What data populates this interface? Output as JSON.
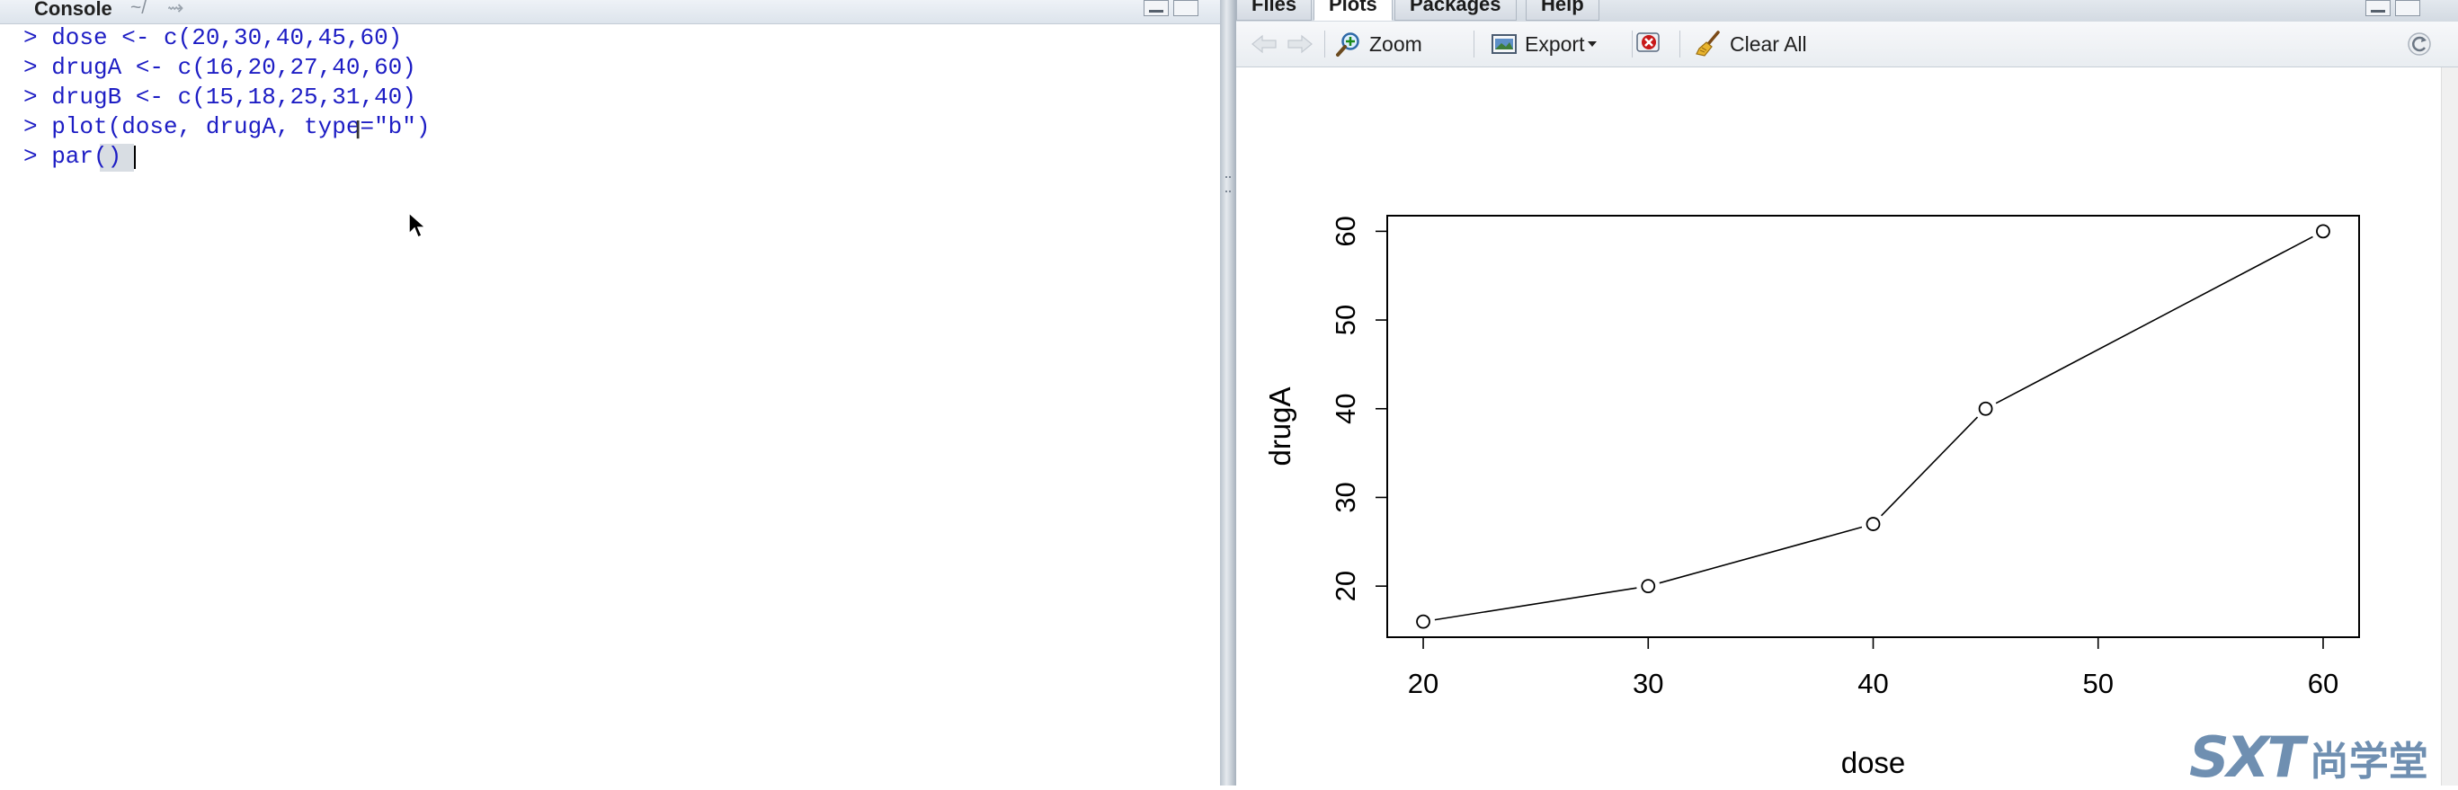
{
  "console": {
    "title": "Console",
    "path": "~/",
    "lines": [
      "> dose <- c(20,30,40,45,60)",
      "> drugA <- c(16,20,27,40,60)",
      "> drugB <- c(15,18,25,31,40)",
      "> plot(dose, drugA, type=\"b\")",
      "> par()"
    ]
  },
  "plots_pane": {
    "tabs": [
      "Files",
      "Plots",
      "Packages",
      "Help"
    ],
    "active_tab": "Plots",
    "toolbar": {
      "zoom_label": "Zoom",
      "export_label": "Export",
      "clear_all_label": "Clear All"
    }
  },
  "colors": {
    "console_text": "#1d1dc4",
    "watermark": "#6f8fb1"
  },
  "watermark": {
    "logo": "SXT",
    "text": "尚学堂"
  },
  "chart_data": {
    "type": "line",
    "plot_type": "b",
    "marker": "open-circle",
    "x": [
      20,
      30,
      40,
      45,
      60
    ],
    "y": [
      16,
      20,
      27,
      40,
      60
    ],
    "xlabel": "dose",
    "ylabel": "drugA",
    "xticks": [
      20,
      30,
      40,
      50,
      60
    ],
    "yticks": [
      20,
      30,
      40,
      50,
      60
    ],
    "xlim": [
      18.4,
      61.6
    ],
    "ylim": [
      14.24,
      61.76
    ],
    "box": true,
    "grid": false
  }
}
